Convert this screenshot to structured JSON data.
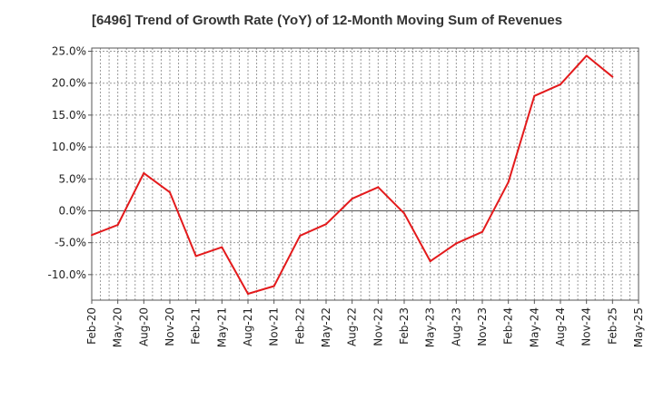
{
  "chart_data": {
    "type": "line",
    "title": "[6496]  Trend of Growth Rate (YoY) of 12-Month Moving Sum of Revenues",
    "xlabel": "",
    "ylabel": "",
    "x": [
      "Feb-20",
      "May-20",
      "Aug-20",
      "Nov-20",
      "Feb-21",
      "May-21",
      "Aug-21",
      "Nov-21",
      "Feb-22",
      "May-22",
      "Aug-22",
      "Nov-22",
      "Feb-23",
      "May-23",
      "Aug-23",
      "Nov-23",
      "Feb-24",
      "May-24",
      "Aug-24",
      "Nov-24",
      "Feb-25",
      "May-25"
    ],
    "ytick_labels": [
      "25.0%",
      "20.0%",
      "15.0%",
      "10.0%",
      "5.0%",
      "0.0%",
      "-5.0%",
      "-10.0%"
    ],
    "ytick_values": [
      25,
      20,
      15,
      10,
      5,
      0,
      -5,
      -10
    ],
    "ylim": [
      -14,
      25.5
    ],
    "grid": true,
    "series": [
      {
        "color": "#e31a1c",
        "values": [
          -3.8,
          -2.2,
          5.9,
          2.9,
          -7.1,
          -5.7,
          -13.0,
          -11.8,
          -3.9,
          -2.1,
          1.9,
          3.7,
          -0.4,
          -7.9,
          -5.1,
          -3.3,
          4.5,
          18.0,
          19.8,
          24.3,
          21.0,
          null
        ]
      }
    ]
  }
}
